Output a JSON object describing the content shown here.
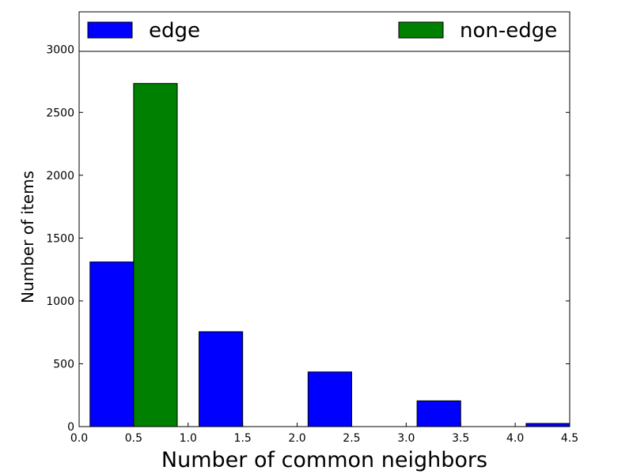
{
  "chart_data": {
    "type": "bar",
    "xlabel": "Number of common neighbors",
    "ylabel": "Number of items",
    "xlim": [
      0.0,
      4.5
    ],
    "ylim": [
      0,
      3300
    ],
    "x_ticks": [
      "0.0",
      "0.5",
      "1.0",
      "1.5",
      "2.0",
      "2.5",
      "3.0",
      "3.5",
      "4.0",
      "4.5"
    ],
    "y_ticks": [
      "0",
      "500",
      "1000",
      "1500",
      "2000",
      "2500",
      "3000"
    ],
    "grid": false,
    "legend_position": "top",
    "bar_width": 0.4,
    "series": [
      {
        "name": "edge",
        "color": "#0000ff",
        "bars": [
          {
            "x": 0.1,
            "value": 1310
          },
          {
            "x": 1.1,
            "value": 755
          },
          {
            "x": 2.1,
            "value": 435
          },
          {
            "x": 3.1,
            "value": 205
          },
          {
            "x": 4.1,
            "value": 25
          }
        ]
      },
      {
        "name": "non-edge",
        "color": "#008000",
        "bars": [
          {
            "x": 0.5,
            "value": 2730
          },
          {
            "x": 1.5,
            "value": 0
          },
          {
            "x": 2.5,
            "value": 0
          },
          {
            "x": 3.5,
            "value": 0
          }
        ]
      }
    ]
  }
}
